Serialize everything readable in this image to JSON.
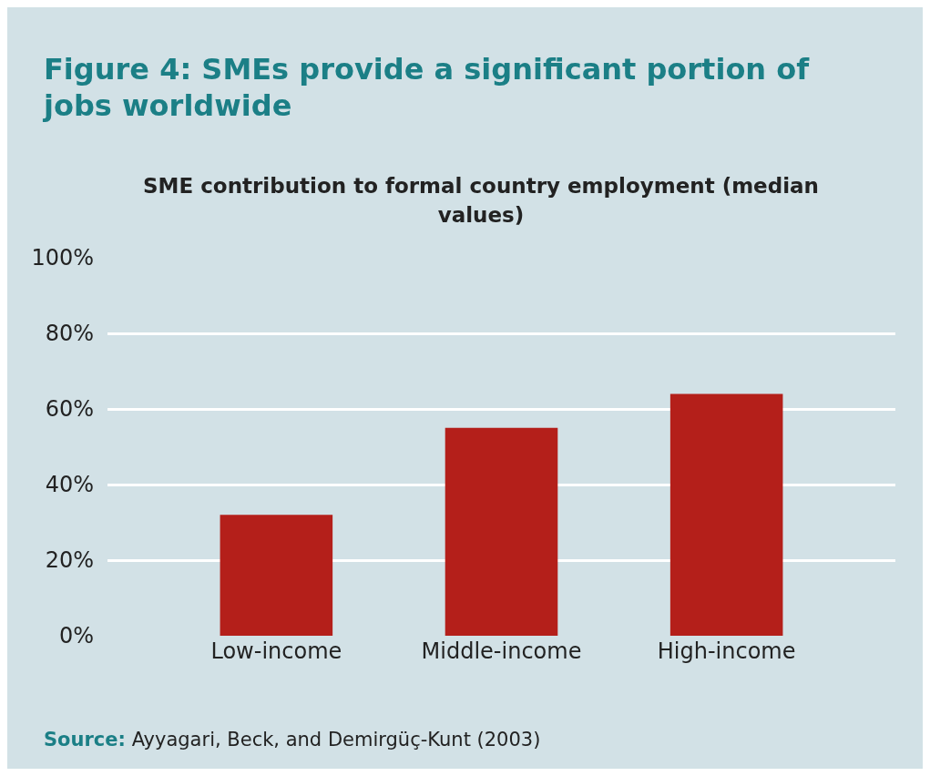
{
  "chart_data": {
    "type": "bar",
    "title": "Figure 4: SMEs provide a significant portion of jobs worldwide",
    "subtitle": "SME contribution to formal country employment (median values)",
    "categories": [
      "Low-income",
      "Middle-income",
      "High-income"
    ],
    "values": [
      32,
      55,
      64
    ],
    "color": "#b41f1a",
    "ylim": [
      0,
      100
    ],
    "yticks": [
      {
        "value": 0,
        "label": "0%"
      },
      {
        "value": 20,
        "label": "20%"
      },
      {
        "value": 40,
        "label": "40%"
      },
      {
        "value": 60,
        "label": "60%"
      },
      {
        "value": 80,
        "label": "80%"
      },
      {
        "value": 100,
        "label": "100%"
      }
    ],
    "grid": "y",
    "annotations": [
      "Source: Ayyagari, Beck, and Demirgüç-Kunt (2003)"
    ]
  }
}
